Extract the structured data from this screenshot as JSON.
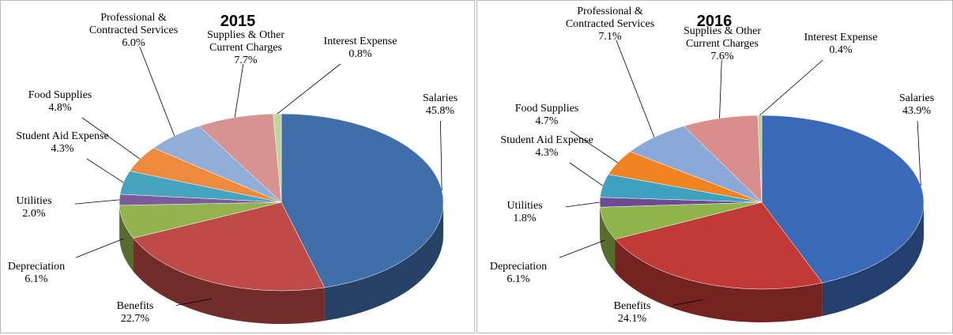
{
  "chart_data": [
    {
      "type": "pie3d",
      "title": "2015",
      "categories": [
        "Salaries",
        "Benefits",
        "Depreciation",
        "Utilities",
        "Student Aid Expense",
        "Food Supplies",
        "Professional & Contracted Services",
        "Supplies & Other Current Charges",
        "Interest Expense"
      ],
      "values": [
        45.8,
        22.7,
        6.1,
        2.0,
        4.3,
        4.8,
        6.0,
        7.7,
        0.8
      ],
      "value_labels": [
        "45.8%",
        "22.7%",
        "6.1%",
        "2.0%",
        "4.3%",
        "4.8%",
        "6.0%",
        "7.7%",
        "0.8%"
      ],
      "colors": [
        "#3f6ea8",
        "#be4b48",
        "#93b34f",
        "#7a5c9c",
        "#46a4be",
        "#ed8a3c",
        "#91afd6",
        "#d79391",
        "#c0d598"
      ]
    },
    {
      "type": "pie3d",
      "title": "2016",
      "categories": [
        "Salaries",
        "Benefits",
        "Depreciation",
        "Utilities",
        "Student Aid Expense",
        "Food Supplies",
        "Professional & Contracted Services",
        "Supplies & Other Current Charges",
        "Interest Expense"
      ],
      "values": [
        43.9,
        24.1,
        6.1,
        1.8,
        4.3,
        4.7,
        7.1,
        7.6,
        0.4
      ],
      "value_labels": [
        "43.9%",
        "24.1%",
        "6.1%",
        "1.8%",
        "4.3%",
        "4.7%",
        "7.1%",
        "7.6%",
        "0.4%"
      ],
      "colors": [
        "#3a69b8",
        "#c23a36",
        "#8fb54a",
        "#6b4b93",
        "#3ea2bf",
        "#f18321",
        "#8aa9d8",
        "#d98e8c",
        "#b9d58e"
      ]
    }
  ]
}
